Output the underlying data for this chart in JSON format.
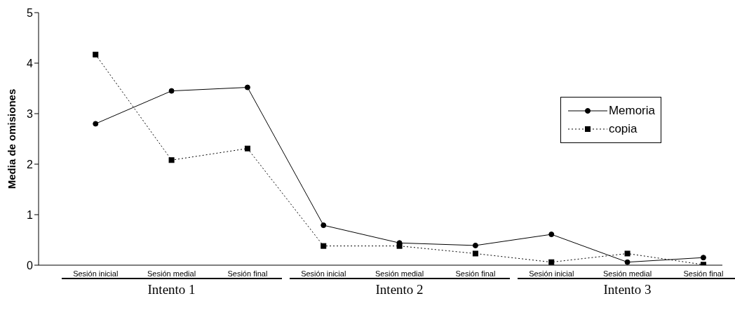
{
  "chart_data": {
    "type": "line",
    "ylabel": "Media de omisiones",
    "categories": [
      "Sesión inicial",
      "Sesión medial",
      "Sesión final",
      "Sesión inicial",
      "Sesión medial",
      "Sesión final",
      "Sesión inicial",
      "Sesión medial",
      "Sesión final"
    ],
    "series": [
      {
        "name": "Memoria",
        "color": "#000000",
        "marker": "circle",
        "line_style": "solid",
        "values": [
          2.8,
          3.45,
          3.52,
          0.79,
          0.44,
          0.39,
          0.61,
          0.06,
          0.15
        ]
      },
      {
        "name": "copia",
        "color": "#000000",
        "marker": "square",
        "line_style": "dotted",
        "values": [
          4.17,
          2.08,
          2.31,
          0.38,
          0.38,
          0.23,
          0.06,
          0.23,
          0.01
        ]
      }
    ],
    "ylim": [
      0,
      5
    ],
    "yticks": [
      0,
      1,
      2,
      3,
      4,
      5
    ],
    "grid": false,
    "legend": "right",
    "annotations": [
      "Intento 1",
      "Intento 2",
      "Intento 3"
    ]
  }
}
